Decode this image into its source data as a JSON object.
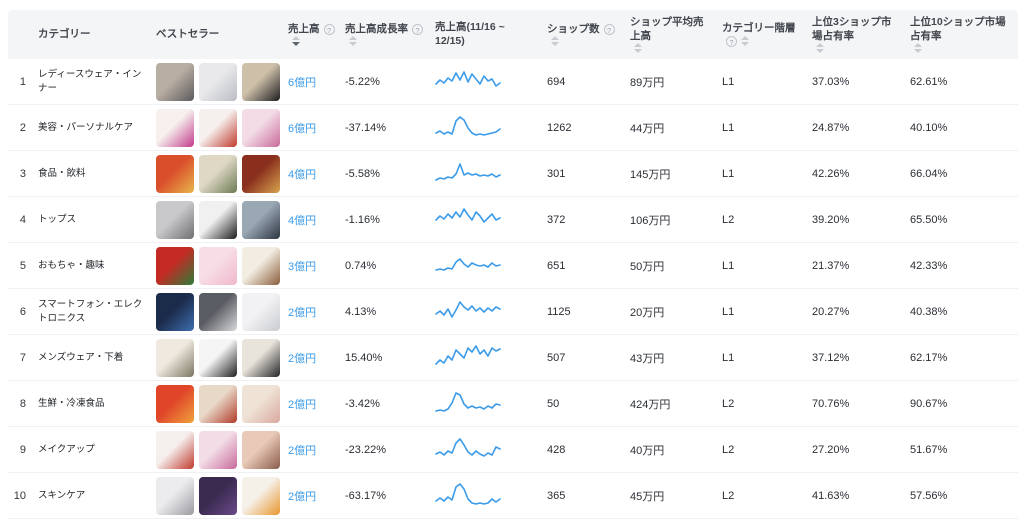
{
  "colors": {
    "accent_blue": "#3c9be8",
    "header_bg": "#f4f5f7",
    "row_border": "#f0f1f4",
    "header_text": "#41464d",
    "body_text": "#2a2e34"
  },
  "table": {
    "columns": [
      {
        "label": "",
        "info": false,
        "sort": false
      },
      {
        "label": "カテゴリー",
        "info": false,
        "sort": false
      },
      {
        "label": "ベストセラー",
        "info": false,
        "sort": false
      },
      {
        "label": "売上高",
        "info": true,
        "sort": true,
        "sorted": "desc"
      },
      {
        "label": "売上高成長率",
        "info": true,
        "sort": true
      },
      {
        "label": "売上高(11/16 ~ 12/15)",
        "info": false,
        "sort": false
      },
      {
        "label": "ショップ数",
        "info": true,
        "sort": true
      },
      {
        "label": "ショップ平均売上高",
        "info": false,
        "sort": true
      },
      {
        "label": "カテゴリー階層",
        "info": true,
        "sort": true
      },
      {
        "label": "上位3ショップ市場占有率",
        "info": false,
        "sort": true
      },
      {
        "label": "上位10ショップ市場占有率",
        "info": false,
        "sort": true
      }
    ],
    "rows": [
      {
        "rank": "1",
        "category": "レディースウェア・インナー",
        "sales": "6億円",
        "growth": "-5.22%",
        "shops": "694",
        "avg_sales": "89万円",
        "tier": "L1",
        "top3": "37.03%",
        "top10": "62.61%",
        "spark": [
          17,
          13,
          16,
          11,
          14,
          6,
          13,
          5,
          15,
          7,
          12,
          17,
          9,
          14,
          12,
          19,
          16
        ],
        "thumbs": [
          [
            "#b9aea2",
            "#5a5a5c"
          ],
          [
            "#e9e9eb",
            "#b9bcc2"
          ],
          [
            "#cdbfa8",
            "#1d1d1f"
          ]
        ]
      },
      {
        "rank": "2",
        "category": "美容・パーソナルケア",
        "sales": "6億円",
        "growth": "-37.14%",
        "shops": "1262",
        "avg_sales": "44万円",
        "tier": "L1",
        "top3": "24.87%",
        "top10": "40.10%",
        "spark": [
          20,
          18,
          21,
          19,
          21,
          8,
          4,
          7,
          15,
          20,
          22,
          21,
          22,
          21,
          20,
          19,
          16
        ],
        "thumbs": [
          [
            "#f7f0ee",
            "#c23a8c"
          ],
          [
            "#f5efed",
            "#c0392b"
          ],
          [
            "#f3dce6",
            "#c86a9b"
          ]
        ]
      },
      {
        "rank": "3",
        "category": "食品・飲料",
        "sales": "4億円",
        "growth": "-5.58%",
        "shops": "301",
        "avg_sales": "145万円",
        "tier": "L1",
        "top3": "42.26%",
        "top10": "66.04%",
        "spark": [
          21,
          19,
          20,
          18,
          19,
          15,
          5,
          16,
          14,
          16,
          15,
          17,
          16,
          17,
          15,
          18,
          16
        ],
        "thumbs": [
          [
            "#d94f2b",
            "#e8b64c"
          ],
          [
            "#ded8c4",
            "#6a7a52"
          ],
          [
            "#8a2e1e",
            "#d8a44e"
          ]
        ]
      },
      {
        "rank": "4",
        "category": "トップス",
        "sales": "4億円",
        "growth": "-1.16%",
        "shops": "372",
        "avg_sales": "106万円",
        "tier": "L2",
        "top3": "39.20%",
        "top10": "65.50%",
        "spark": [
          15,
          11,
          14,
          9,
          13,
          7,
          12,
          4,
          10,
          15,
          7,
          11,
          17,
          13,
          9,
          15,
          13
        ],
        "thumbs": [
          [
            "#c9c9cb",
            "#6e6e70"
          ],
          [
            "#f0f0f0",
            "#1a1a1c"
          ],
          [
            "#9aa7b5",
            "#2c3540"
          ]
        ]
      },
      {
        "rank": "5",
        "category": "おもちゃ・趣味",
        "sales": "3億円",
        "growth": "0.74%",
        "shops": "651",
        "avg_sales": "50万円",
        "tier": "L1",
        "top3": "21.37%",
        "top10": "42.33%",
        "spark": [
          19,
          18,
          19,
          17,
          18,
          11,
          8,
          13,
          16,
          12,
          14,
          15,
          14,
          16,
          12,
          15,
          14
        ],
        "thumbs": [
          [
            "#c42a24",
            "#2e7d3a"
          ],
          [
            "#f7dde6",
            "#f0b7cc"
          ],
          [
            "#f2ece2",
            "#8a5c3a"
          ]
        ]
      },
      {
        "rank": "6",
        "category": "スマートフォン・エレクトロニクス",
        "sales": "2億円",
        "growth": "4.13%",
        "shops": "1125",
        "avg_sales": "20万円",
        "tier": "L1",
        "top3": "20.27%",
        "top10": "40.38%",
        "spark": [
          17,
          14,
          18,
          12,
          20,
          13,
          5,
          10,
          13,
          9,
          14,
          11,
          15,
          11,
          14,
          10,
          12
        ],
        "thumbs": [
          [
            "#1b2b4a",
            "#3d6fb0"
          ],
          [
            "#5a5d63",
            "#d8dadc"
          ],
          [
            "#f2f2f4",
            "#c9cbd0"
          ]
        ]
      },
      {
        "rank": "7",
        "category": "メンズウェア・下着",
        "sales": "2億円",
        "growth": "15.40%",
        "shops": "507",
        "avg_sales": "43万円",
        "tier": "L1",
        "top3": "37.12%",
        "top10": "62.17%",
        "spark": [
          21,
          17,
          20,
          13,
          17,
          7,
          11,
          15,
          5,
          9,
          3,
          11,
          7,
          13,
          5,
          8,
          6
        ],
        "thumbs": [
          [
            "#efe9df",
            "#7a7460"
          ],
          [
            "#f5f5f5",
            "#1e1e20"
          ],
          [
            "#e8e4dc",
            "#242426"
          ]
        ]
      },
      {
        "rank": "8",
        "category": "生鮮・冷凍食品",
        "sales": "2億円",
        "growth": "-3.42%",
        "shops": "50",
        "avg_sales": "424万円",
        "tier": "L2",
        "top3": "70.76%",
        "top10": "90.67%",
        "spark": [
          22,
          21,
          22,
          20,
          14,
          4,
          6,
          15,
          19,
          17,
          19,
          18,
          20,
          17,
          19,
          15,
          16
        ],
        "thumbs": [
          [
            "#e0452a",
            "#f0a23c"
          ],
          [
            "#e8d8c8",
            "#b03a28"
          ],
          [
            "#efe3d6",
            "#d9a8a0"
          ]
        ]
      },
      {
        "rank": "9",
        "category": "メイクアップ",
        "sales": "2億円",
        "growth": "-23.22%",
        "shops": "428",
        "avg_sales": "40万円",
        "tier": "L2",
        "top3": "27.20%",
        "top10": "51.67%",
        "spark": [
          19,
          17,
          20,
          16,
          18,
          8,
          4,
          10,
          17,
          20,
          16,
          19,
          21,
          18,
          20,
          12,
          14
        ],
        "thumbs": [
          [
            "#f5efed",
            "#c0392b"
          ],
          [
            "#f3dce6",
            "#c86a9b"
          ],
          [
            "#e9c9b8",
            "#8a5c4a"
          ]
        ]
      },
      {
        "rank": "10",
        "category": "スキンケア",
        "sales": "2億円",
        "growth": "-63.17%",
        "shops": "365",
        "avg_sales": "45万円",
        "tier": "L2",
        "top3": "41.63%",
        "top10": "57.56%",
        "spark": [
          20,
          17,
          20,
          16,
          19,
          6,
          3,
          8,
          18,
          22,
          23,
          22,
          23,
          22,
          18,
          21,
          18
        ],
        "thumbs": [
          [
            "#ececee",
            "#9a9aa0"
          ],
          [
            "#3a2a50",
            "#6a4a8a"
          ],
          [
            "#f5f0e8",
            "#e8962e"
          ]
        ]
      }
    ]
  },
  "chart_data": {
    "type": "line",
    "note": "sparkline per row, column 売上高(11/16 ~ 12/15); values are vertical positions (lower number = higher sales), 17 evenly spaced points per row",
    "series_key": "table.rows[].spark",
    "line_color": "#3c9be8"
  }
}
